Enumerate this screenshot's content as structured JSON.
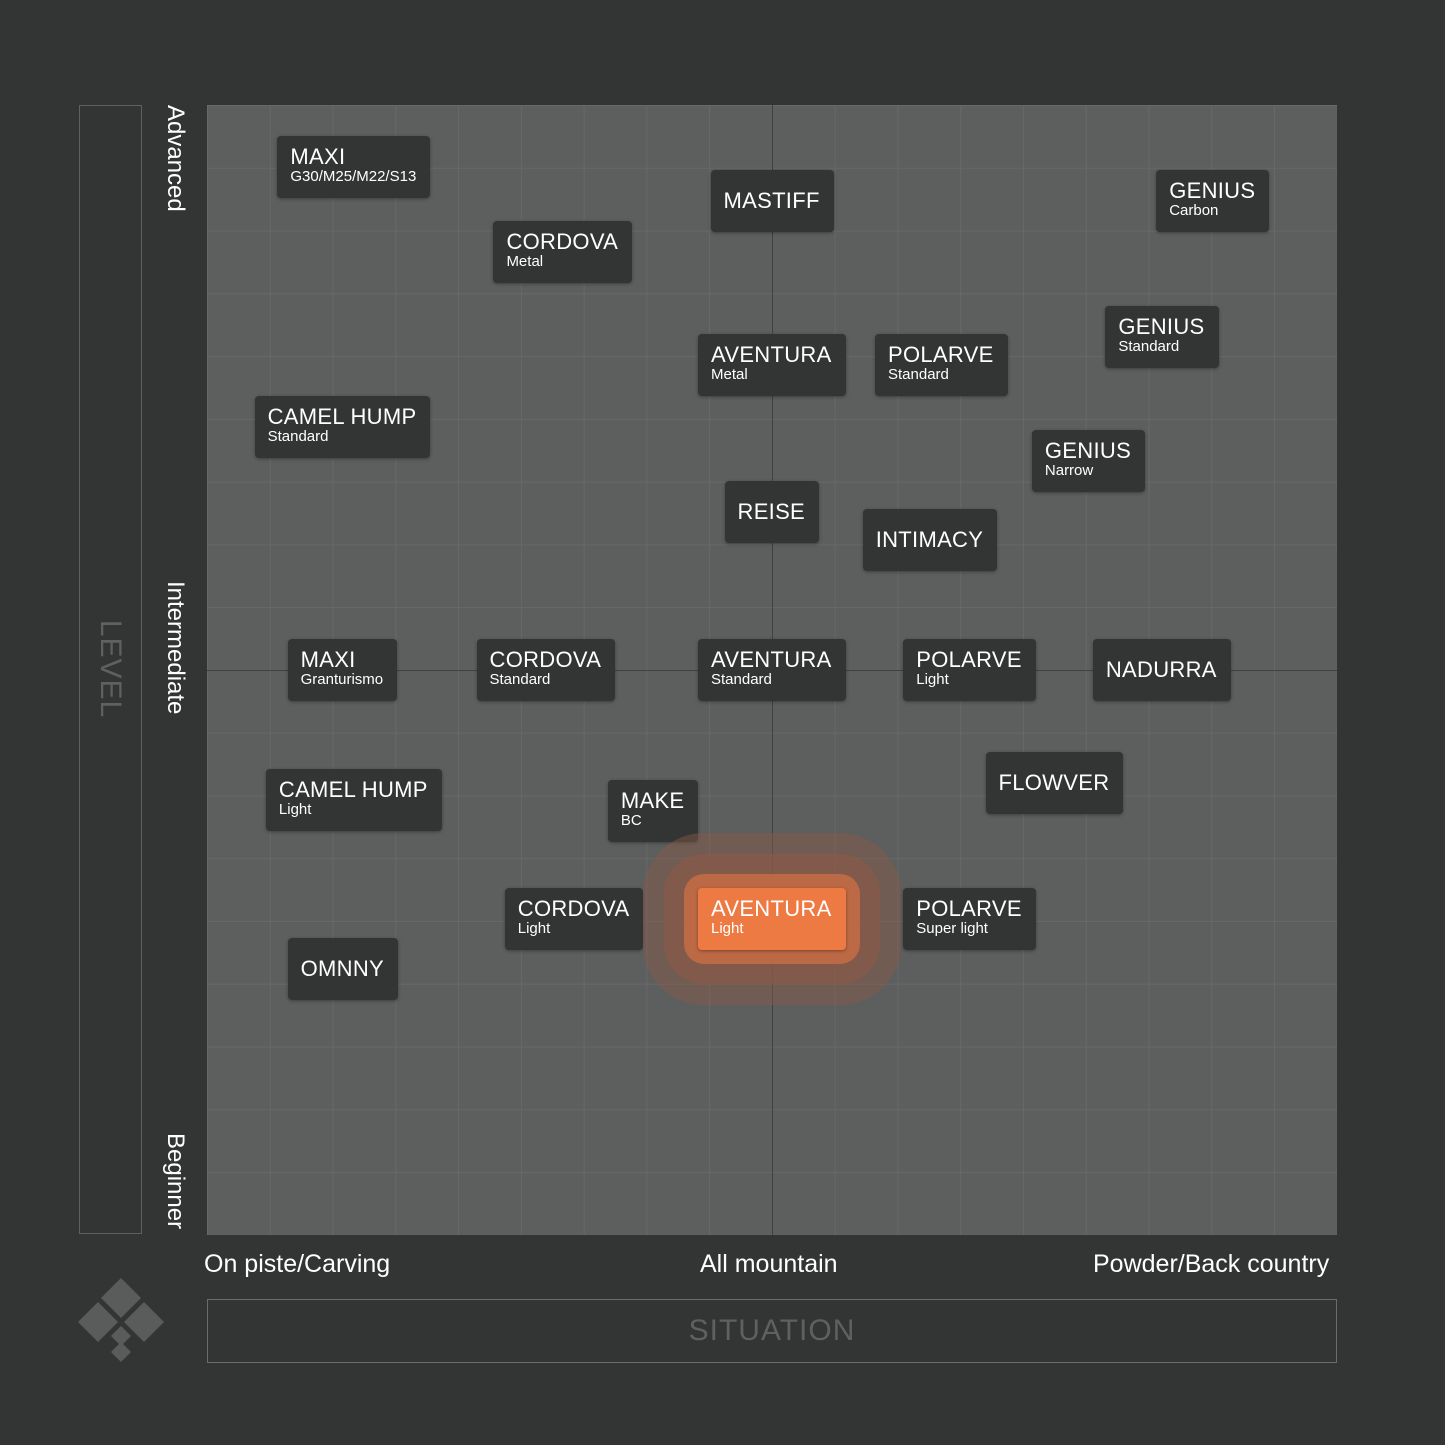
{
  "colors": {
    "background": "#333434",
    "plot_area": "#5d5e5e",
    "label_box": "#333434",
    "highlight": "#ee7a43",
    "glow_inner": "#c26a45",
    "glow_outer": "#8a5a48"
  },
  "y_axis": {
    "title": "LEVEL",
    "ticks": [
      "Beginner",
      "Intermediate",
      "Advanced"
    ]
  },
  "x_axis": {
    "title": "SITUATION",
    "ticks": [
      "On piste/Carving",
      "All mountain",
      "Powder/Back country"
    ]
  },
  "logo": {
    "icon": "diamond-logo-icon"
  },
  "chart_data": {
    "type": "scatter",
    "title": "",
    "xlabel": "SITUATION",
    "ylabel": "LEVEL",
    "x_categories": [
      "On piste/Carving",
      "All mountain",
      "Powder/Back country"
    ],
    "y_categories": [
      "Beginner",
      "Intermediate",
      "Advanced"
    ],
    "xlim": [
      -1,
      1
    ],
    "ylim": [
      -1,
      1
    ],
    "grid": true,
    "highlighted": "AVENTURA Light",
    "points": [
      {
        "name": "MAXI",
        "variant": "G30/M25/M22/S13",
        "x": -0.74,
        "y": 0.89
      },
      {
        "name": "CORDOVA",
        "variant": "Metal",
        "x": -0.37,
        "y": 0.74
      },
      {
        "name": "MASTIFF",
        "variant": "",
        "x": 0.0,
        "y": 0.83
      },
      {
        "name": "GENIUS",
        "variant": "Carbon",
        "x": 0.78,
        "y": 0.83
      },
      {
        "name": "GENIUS",
        "variant": "Standard",
        "x": 0.69,
        "y": 0.59
      },
      {
        "name": "AVENTURA",
        "variant": "Metal",
        "x": 0.0,
        "y": 0.54
      },
      {
        "name": "POLARVE",
        "variant": "Standard",
        "x": 0.3,
        "y": 0.54
      },
      {
        "name": "CAMEL HUMP",
        "variant": "Standard",
        "x": -0.76,
        "y": 0.43
      },
      {
        "name": "GENIUS",
        "variant": "Narrow",
        "x": 0.56,
        "y": 0.37
      },
      {
        "name": "REISE",
        "variant": "",
        "x": 0.0,
        "y": 0.28
      },
      {
        "name": "INTIMACY",
        "variant": "",
        "x": 0.28,
        "y": 0.23
      },
      {
        "name": "MAXI",
        "variant": "Granturismo",
        "x": -0.76,
        "y": 0.0
      },
      {
        "name": "CORDOVA",
        "variant": "Standard",
        "x": -0.4,
        "y": 0.0
      },
      {
        "name": "AVENTURA",
        "variant": "Standard",
        "x": 0.0,
        "y": 0.0
      },
      {
        "name": "POLARVE",
        "variant": "Light",
        "x": 0.35,
        "y": 0.0
      },
      {
        "name": "NADURRA",
        "variant": "",
        "x": 0.69,
        "y": 0.0
      },
      {
        "name": "FLOWVER",
        "variant": "",
        "x": 0.5,
        "y": -0.2
      },
      {
        "name": "CAMEL HUMP",
        "variant": "Light",
        "x": -0.74,
        "y": -0.23
      },
      {
        "name": "MAKE",
        "variant": "BC",
        "x": -0.21,
        "y": -0.25
      },
      {
        "name": "CORDOVA",
        "variant": "Light",
        "x": -0.35,
        "y": -0.44
      },
      {
        "name": "AVENTURA",
        "variant": "Light",
        "x": 0.0,
        "y": -0.44
      },
      {
        "name": "POLARVE",
        "variant": "Super light",
        "x": 0.35,
        "y": -0.44
      },
      {
        "name": "OMNNY",
        "variant": "",
        "x": -0.76,
        "y": -0.53
      }
    ]
  }
}
